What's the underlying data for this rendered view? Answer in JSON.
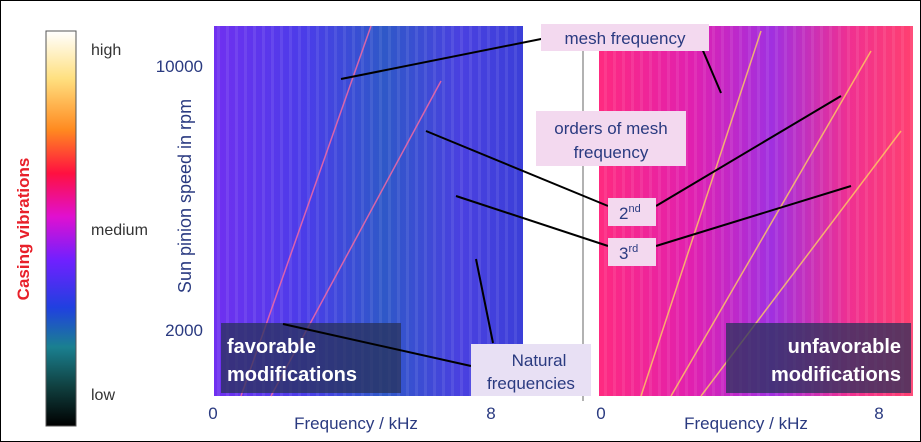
{
  "colorbar": {
    "title": "Casing vibrations",
    "high": "high",
    "medium": "medium",
    "low": "low"
  },
  "y_axis": {
    "label": "Sun pinion speed in rpm",
    "ticks": [
      10000,
      2000
    ]
  },
  "left_panel": {
    "x_axis": {
      "label": "Frequency / kHz",
      "ticks": [
        0,
        8
      ]
    },
    "caption": [
      "favorable",
      "modifications"
    ]
  },
  "right_panel": {
    "x_axis": {
      "label": "Frequency / kHz",
      "ticks": [
        0,
        8
      ]
    },
    "caption": [
      "unfavorable",
      "modifications"
    ]
  },
  "annotations": {
    "mesh_frequency": "mesh frequency",
    "orders": [
      "orders of mesh",
      "frequency"
    ],
    "second": {
      "number": "2",
      "suffix": "nd"
    },
    "third": {
      "number": "3",
      "suffix": "rd"
    },
    "natural": [
      "Natural",
      "frequencies"
    ]
  }
}
